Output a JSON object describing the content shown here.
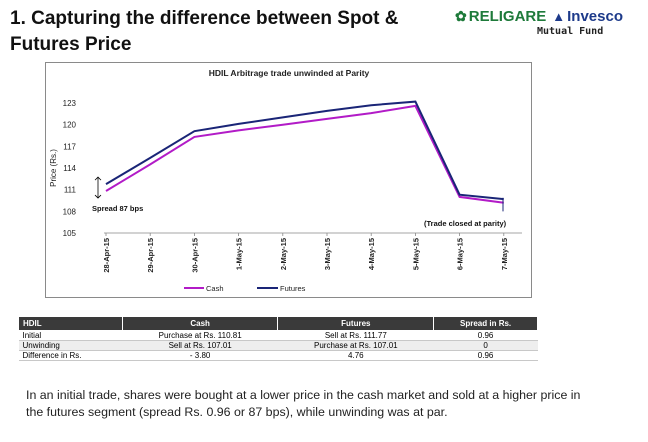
{
  "slide": {
    "title": "1. Capturing the difference between Spot & Futures Price",
    "logo_main": "RELIGARE",
    "logo_partner": "Invesco",
    "logo_sub": "Mutual Fund"
  },
  "chart_data": {
    "type": "line",
    "title": "HDIL Arbitrage trade unwinded at Parity",
    "xlabel": "",
    "ylabel": "Price (Rs.)",
    "ylim": [
      105,
      123
    ],
    "yticks": [
      105,
      108,
      111,
      114,
      117,
      120,
      123
    ],
    "categories": [
      "28-Apr-15",
      "29-Apr-15",
      "30-Apr-15",
      "1-May-15",
      "2-May-15",
      "3-May-15",
      "4-May-15",
      "5-May-15",
      "6-May-15",
      "7-May-15"
    ],
    "series": [
      {
        "name": "Cash",
        "color": "#b21bc7",
        "values": [
          110.81,
          114.5,
          118.3,
          119.2,
          120.0,
          120.8,
          121.6,
          122.6,
          110.0,
          109.2
        ]
      },
      {
        "name": "Futures",
        "color": "#1a2577",
        "values": [
          111.77,
          115.4,
          119.1,
          120.1,
          121.0,
          121.9,
          122.7,
          123.2,
          110.3,
          109.7
        ]
      }
    ],
    "annotations": [
      "Spread 87 bps",
      "(Trade closed at parity)"
    ],
    "legend": "bottom",
    "grid": false
  },
  "table": {
    "headers": [
      "HDIL",
      "Cash",
      "Futures",
      "Spread in Rs."
    ],
    "rows": [
      [
        "Initial",
        "Purchase at Rs. 110.81",
        "Sell at Rs. 111.77",
        "0.96"
      ],
      [
        "Unwinding",
        "Sell at Rs. 107.01",
        "Purchase at Rs. 107.01",
        "0"
      ],
      [
        "Difference in Rs.",
        "- 3.80",
        "4.76",
        "0.96"
      ]
    ]
  },
  "paragraph": "In an initial trade, shares were bought at a lower price in the cash market and sold at a higher price in the futures segment (spread Rs. 0.96 or 87 bps), while unwinding was at par."
}
